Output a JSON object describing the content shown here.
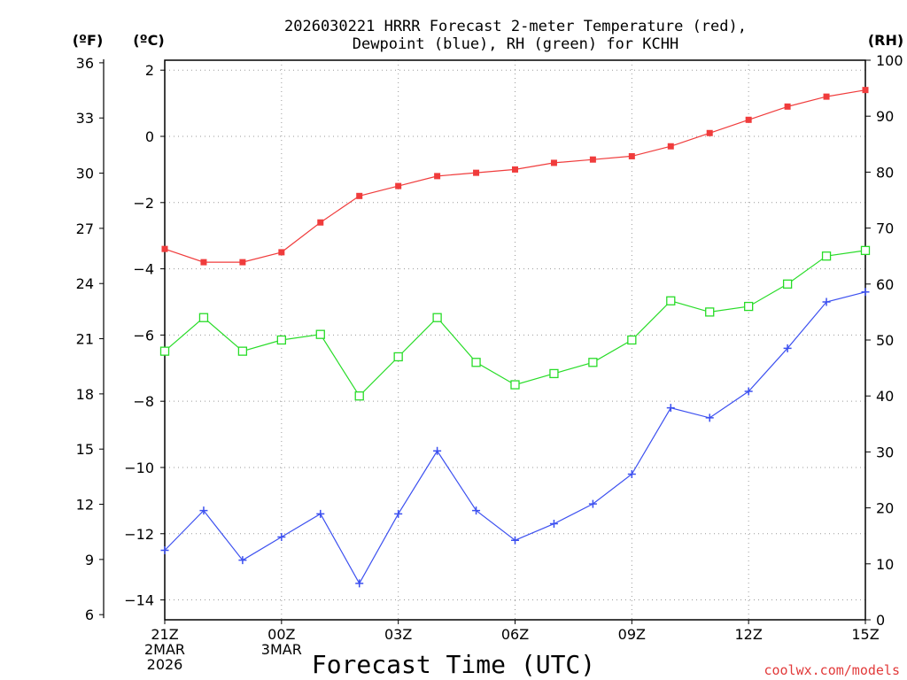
{
  "chart_data": {
    "type": "line",
    "title_line1": "2026030221 HRRR Forecast 2-meter Temperature (red),",
    "title_line2": "Dewpoint (blue), RH (green) for KCHH",
    "xlabel": "Forecast Time (UTC)",
    "credit": "coolwx.com/models",
    "units": {
      "fahrenheit": "(ºF)",
      "celsius": "(ºC)",
      "rh": "(RH)"
    },
    "x": [
      0,
      1,
      2,
      3,
      4,
      5,
      6,
      7,
      8,
      9,
      10,
      11,
      12,
      13,
      14,
      15,
      16,
      17,
      18
    ],
    "xlim": [
      0,
      18
    ],
    "x_ticks": [
      {
        "x": 0,
        "lines": [
          "21Z",
          "2MAR",
          "2026"
        ]
      },
      {
        "x": 3,
        "lines": [
          "00Z",
          "3MAR"
        ]
      },
      {
        "x": 6,
        "lines": [
          "03Z"
        ]
      },
      {
        "x": 9,
        "lines": [
          "06Z"
        ]
      },
      {
        "x": 12,
        "lines": [
          "09Z"
        ]
      },
      {
        "x": 15,
        "lines": [
          "12Z"
        ]
      },
      {
        "x": 18,
        "lines": [
          "15Z"
        ]
      }
    ],
    "celsius_axis": {
      "lim": [
        -14.6,
        2.3
      ],
      "ticks": [
        2,
        0,
        -2,
        -4,
        -6,
        -8,
        -10,
        -12,
        -14
      ],
      "labels": [
        "2",
        "0",
        "−2",
        "−4",
        "−6",
        "−8",
        "−10",
        "−12",
        "−14"
      ]
    },
    "fahrenheit_axis": {
      "ticks": [
        36,
        33,
        30,
        27,
        24,
        21,
        18,
        15,
        12,
        9,
        6
      ]
    },
    "rh_axis": {
      "lim": [
        0,
        100
      ],
      "ticks": [
        100,
        90,
        80,
        70,
        60,
        50,
        40,
        30,
        20,
        10,
        0
      ]
    },
    "series": [
      {
        "name": "Temperature",
        "axis": "celsius",
        "color": "#f03c3c",
        "marker": "filled-square",
        "values": [
          -3.4,
          -3.8,
          -3.8,
          -3.5,
          -2.6,
          -1.8,
          -1.5,
          -1.2,
          -1.1,
          -1.0,
          -0.8,
          -0.7,
          -0.6,
          -0.3,
          0.1,
          0.5,
          0.9,
          1.2,
          1.4
        ]
      },
      {
        "name": "Dewpoint",
        "axis": "celsius",
        "color": "#3c50f0",
        "marker": "plus",
        "values": [
          -12.5,
          -11.3,
          -12.8,
          -12.1,
          -11.4,
          -13.5,
          -11.4,
          -9.5,
          -11.3,
          -12.2,
          -11.7,
          -11.1,
          -10.2,
          -8.2,
          -8.5,
          -7.7,
          -6.4,
          -5.0,
          -4.7
        ]
      },
      {
        "name": "RH",
        "axis": "rh",
        "color": "#28dc28",
        "marker": "open-square",
        "values": [
          48,
          54,
          48,
          50,
          51,
          40,
          47,
          54,
          46,
          42,
          44,
          46,
          50,
          57,
          55,
          56,
          60,
          65,
          66
        ]
      }
    ]
  }
}
